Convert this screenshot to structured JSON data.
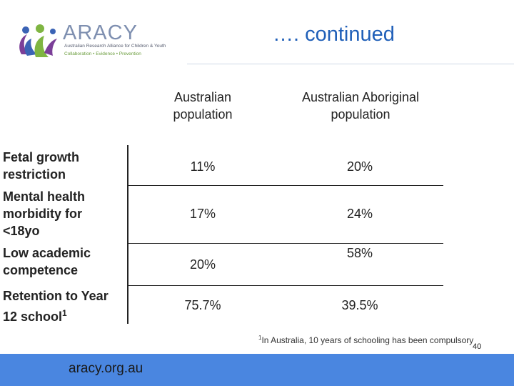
{
  "header": {
    "logo_word": "ARACY",
    "logo_subtitle": "Australian Research Alliance for Children & Youth",
    "logo_tagline": "Collaboration • Evidence • Prevention",
    "title": "…. continued"
  },
  "table": {
    "columns": [
      "Australian population",
      "Australian Aboriginal population"
    ],
    "rows": [
      {
        "label": "Fetal growth restriction",
        "australian": "11%",
        "aboriginal": "20%"
      },
      {
        "label": "Mental health morbidity for <18yo",
        "australian": "17%",
        "aboriginal": "24%"
      },
      {
        "label": "Low academic competence",
        "australian": "20%",
        "aboriginal": "58%"
      },
      {
        "label": "Retention to Year 12 school",
        "label_sup": "1",
        "australian": "75.7%",
        "aboriginal": "39.5%"
      }
    ]
  },
  "footnote": {
    "marker": "1",
    "text": "In Australia, 10 years of schooling has been compulsory"
  },
  "footer": {
    "url": "aracy.org.au",
    "page_number": "40"
  },
  "colors": {
    "title": "#1f5fb8",
    "footer_bar": "#4a86e0",
    "logo_blue": "#3b63b5",
    "logo_green": "#7fb542",
    "logo_purple": "#7b3f98"
  }
}
